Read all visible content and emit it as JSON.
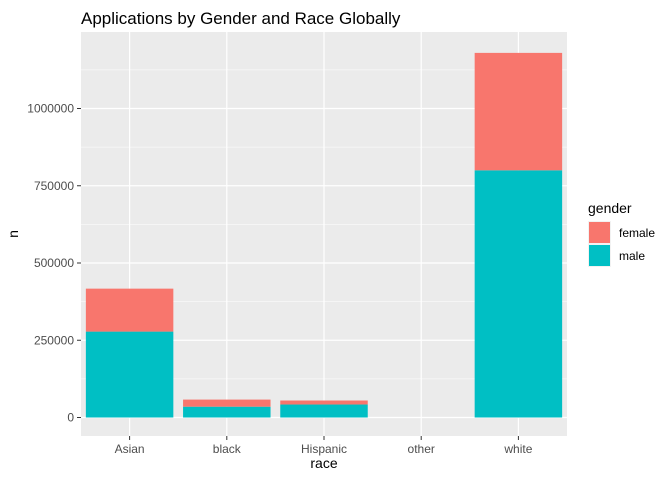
{
  "chart_data": {
    "type": "bar",
    "stacked": true,
    "title": "Applications by Gender and Race Globally",
    "xlabel": "race",
    "ylabel": "n",
    "categories": [
      "Asian",
      "black",
      "Hispanic",
      "other",
      "white"
    ],
    "series": [
      {
        "name": "male",
        "color": "#00BFC4",
        "values": [
          278000,
          35000,
          42000,
          0,
          800000
        ]
      },
      {
        "name": "female",
        "color": "#F8766D",
        "values": [
          139000,
          23000,
          13000,
          0,
          380000
        ]
      }
    ],
    "ylim": [
      0,
      1250000
    ],
    "yticks": [
      0,
      250000,
      500000,
      750000,
      1000000
    ],
    "ytick_labels": [
      "0",
      "250000",
      "500000",
      "750000",
      "1000000"
    ],
    "grid": true,
    "legend": {
      "title": "gender",
      "placement": "right",
      "entries": [
        {
          "name": "female",
          "color": "#F8766D"
        },
        {
          "name": "male",
          "color": "#00BFC4"
        }
      ]
    },
    "panel_background": "#EBEBEB"
  }
}
